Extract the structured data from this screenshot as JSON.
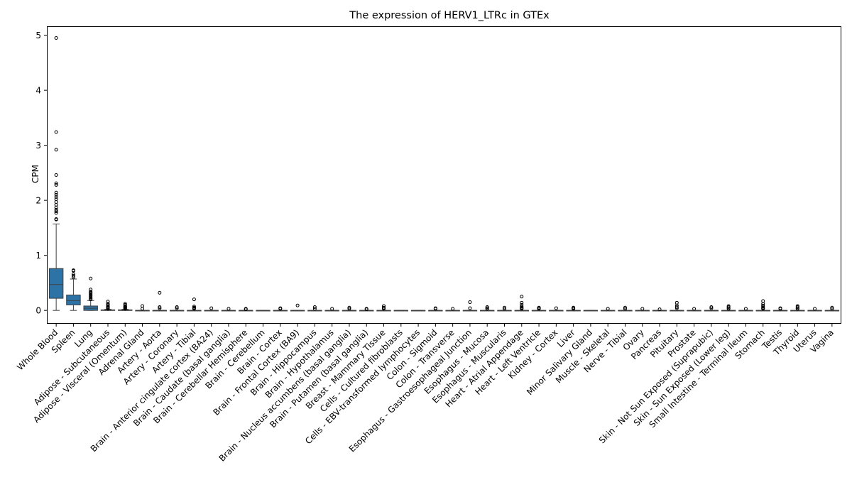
{
  "chart_data": {
    "type": "box",
    "title": "The expression of HERV1_LTRc in GTEx",
    "xlabel": "",
    "ylabel": "CPM",
    "ylim": [
      -0.23,
      5.15
    ],
    "yticks": [
      0,
      1,
      2,
      3,
      4,
      5
    ],
    "grid": false,
    "box_color": "#2e73a6",
    "categories": [
      "Whole Blood",
      "Spleen",
      "Lung",
      "Adipose - Subcutaneous",
      "Adipose - Visceral (Omentum)",
      "Adrenal Gland",
      "Artery - Aorta",
      "Artery - Coronary",
      "Artery - Tibial",
      "Brain - Anterior cingulate cortex (BA24)",
      "Brain - Caudate (basal ganglia)",
      "Brain - Cerebellar Hemisphere",
      "Brain - Cerebellum",
      "Brain - Cortex",
      "Brain - Frontal Cortex (BA9)",
      "Brain - Hippocampus",
      "Brain - Hypothalamus",
      "Brain - Nucleus accumbens (basal ganglia)",
      "Brain - Putamen (basal ganglia)",
      "Breast - Mammary Tissue",
      "Cells - Cultured fibroblasts",
      "Cells - EBV-transformed lymphocytes",
      "Colon - Sigmoid",
      "Colon - Transverse",
      "Esophagus - Gastroesophageal Junction",
      "Esophagus - Mucosa",
      "Esophagus - Muscularis",
      "Heart - Atrial Appendage",
      "Heart - Left Ventricle",
      "Kidney - Cortex",
      "Liver",
      "Minor Salivary Gland",
      "Muscle - Skeletal",
      "Nerve - Tibial",
      "Ovary",
      "Pancreas",
      "Pituitary",
      "Prostate",
      "Skin - Not Sun Exposed (Suprapubic)",
      "Skin - Sun Exposed (Lower leg)",
      "Small Intestine - Terminal Ileum",
      "Stomach",
      "Testis",
      "Thyroid",
      "Uterus",
      "Vagina"
    ],
    "boxes": [
      {
        "q1": 0.22,
        "median": 0.47,
        "q3": 0.76,
        "wlo": 0.0,
        "whi": 1.57,
        "outliers": [
          4.95,
          3.24,
          2.92,
          2.46,
          2.31,
          2.28,
          2.14,
          2.1,
          2.06,
          2.02,
          1.97,
          1.92,
          1.87,
          1.83,
          1.8,
          1.77,
          1.66,
          1.65
        ]
      },
      {
        "q1": 0.1,
        "median": 0.18,
        "q3": 0.28,
        "wlo": 0.0,
        "whi": 0.57,
        "outliers": [
          0.73,
          0.72,
          0.66,
          0.63,
          0.6
        ]
      },
      {
        "q1": 0.0,
        "median": 0.04,
        "q3": 0.08,
        "wlo": 0.0,
        "whi": 0.18,
        "outliers": [
          0.58,
          0.38,
          0.34,
          0.32,
          0.3,
          0.28,
          0.26,
          0.24,
          0.22,
          0.2
        ]
      },
      {
        "q1": 0.0,
        "median": 0.0,
        "q3": 0.01,
        "wlo": 0.0,
        "whi": 0.02,
        "outliers": [
          0.16,
          0.12,
          0.1,
          0.08,
          0.06,
          0.05,
          0.04,
          0.03
        ]
      },
      {
        "q1": 0.0,
        "median": 0.0,
        "q3": 0.01,
        "wlo": 0.0,
        "whi": 0.02,
        "outliers": [
          0.12,
          0.1,
          0.08,
          0.07,
          0.06,
          0.05,
          0.04,
          0.03
        ]
      },
      {
        "q1": 0.0,
        "median": 0.0,
        "q3": 0.0,
        "wlo": 0.0,
        "whi": 0.0,
        "outliers": [
          0.08,
          0.03
        ]
      },
      {
        "q1": 0.0,
        "median": 0.0,
        "q3": 0.0,
        "wlo": 0.0,
        "whi": 0.0,
        "outliers": [
          0.32,
          0.06,
          0.04
        ]
      },
      {
        "q1": 0.0,
        "median": 0.0,
        "q3": 0.0,
        "wlo": 0.0,
        "whi": 0.0,
        "outliers": [
          0.06,
          0.04
        ]
      },
      {
        "q1": 0.0,
        "median": 0.0,
        "q3": 0.0,
        "wlo": 0.0,
        "whi": 0.0,
        "outliers": [
          0.2,
          0.07,
          0.05,
          0.04,
          0.03
        ]
      },
      {
        "q1": 0.0,
        "median": 0.0,
        "q3": 0.0,
        "wlo": 0.0,
        "whi": 0.0,
        "outliers": [
          0.04
        ]
      },
      {
        "q1": 0.0,
        "median": 0.0,
        "q3": 0.0,
        "wlo": 0.0,
        "whi": 0.0,
        "outliers": [
          0.03
        ]
      },
      {
        "q1": 0.0,
        "median": 0.0,
        "q3": 0.0,
        "wlo": 0.0,
        "whi": 0.0,
        "outliers": [
          0.03,
          0.02
        ]
      },
      {
        "q1": 0.0,
        "median": 0.0,
        "q3": 0.0,
        "wlo": 0.0,
        "whi": 0.0,
        "outliers": []
      },
      {
        "q1": 0.0,
        "median": 0.0,
        "q3": 0.0,
        "wlo": 0.0,
        "whi": 0.0,
        "outliers": [
          0.04,
          0.03
        ]
      },
      {
        "q1": 0.0,
        "median": 0.0,
        "q3": 0.0,
        "wlo": 0.0,
        "whi": 0.0,
        "outliers": [
          0.09
        ]
      },
      {
        "q1": 0.0,
        "median": 0.0,
        "q3": 0.0,
        "wlo": 0.0,
        "whi": 0.0,
        "outliers": [
          0.06,
          0.03
        ]
      },
      {
        "q1": 0.0,
        "median": 0.0,
        "q3": 0.0,
        "wlo": 0.0,
        "whi": 0.0,
        "outliers": [
          0.03
        ]
      },
      {
        "q1": 0.0,
        "median": 0.0,
        "q3": 0.0,
        "wlo": 0.0,
        "whi": 0.0,
        "outliers": [
          0.05,
          0.03
        ]
      },
      {
        "q1": 0.0,
        "median": 0.0,
        "q3": 0.0,
        "wlo": 0.0,
        "whi": 0.0,
        "outliers": [
          0.03,
          0.02
        ]
      },
      {
        "q1": 0.0,
        "median": 0.0,
        "q3": 0.0,
        "wlo": 0.0,
        "whi": 0.0,
        "outliers": [
          0.08,
          0.05,
          0.04,
          0.03
        ]
      },
      {
        "q1": 0.0,
        "median": 0.0,
        "q3": 0.0,
        "wlo": 0.0,
        "whi": 0.0,
        "outliers": []
      },
      {
        "q1": 0.0,
        "median": 0.0,
        "q3": 0.0,
        "wlo": 0.0,
        "whi": 0.0,
        "outliers": []
      },
      {
        "q1": 0.0,
        "median": 0.0,
        "q3": 0.0,
        "wlo": 0.0,
        "whi": 0.0,
        "outliers": [
          0.04,
          0.03
        ]
      },
      {
        "q1": 0.0,
        "median": 0.0,
        "q3": 0.0,
        "wlo": 0.0,
        "whi": 0.0,
        "outliers": [
          0.03
        ]
      },
      {
        "q1": 0.0,
        "median": 0.0,
        "q3": 0.0,
        "wlo": 0.0,
        "whi": 0.0,
        "outliers": [
          0.15,
          0.04
        ]
      },
      {
        "q1": 0.0,
        "median": 0.0,
        "q3": 0.0,
        "wlo": 0.0,
        "whi": 0.0,
        "outliers": [
          0.06,
          0.04,
          0.03
        ]
      },
      {
        "q1": 0.0,
        "median": 0.0,
        "q3": 0.0,
        "wlo": 0.0,
        "whi": 0.0,
        "outliers": [
          0.05,
          0.03
        ]
      },
      {
        "q1": 0.0,
        "median": 0.0,
        "q3": 0.0,
        "wlo": 0.0,
        "whi": 0.0,
        "outliers": [
          0.25,
          0.14,
          0.1,
          0.07,
          0.05,
          0.04,
          0.03
        ]
      },
      {
        "q1": 0.0,
        "median": 0.0,
        "q3": 0.0,
        "wlo": 0.0,
        "whi": 0.0,
        "outliers": [
          0.05,
          0.04,
          0.03
        ]
      },
      {
        "q1": 0.0,
        "median": 0.0,
        "q3": 0.0,
        "wlo": 0.0,
        "whi": 0.0,
        "outliers": [
          0.04
        ]
      },
      {
        "q1": 0.0,
        "median": 0.0,
        "q3": 0.0,
        "wlo": 0.0,
        "whi": 0.0,
        "outliers": [
          0.05,
          0.04,
          0.03
        ]
      },
      {
        "q1": 0.0,
        "median": 0.0,
        "q3": 0.0,
        "wlo": 0.0,
        "whi": 0.0,
        "outliers": []
      },
      {
        "q1": 0.0,
        "median": 0.0,
        "q3": 0.0,
        "wlo": 0.0,
        "whi": 0.0,
        "outliers": [
          0.03
        ]
      },
      {
        "q1": 0.0,
        "median": 0.0,
        "q3": 0.0,
        "wlo": 0.0,
        "whi": 0.0,
        "outliers": [
          0.05,
          0.03
        ]
      },
      {
        "q1": 0.0,
        "median": 0.0,
        "q3": 0.0,
        "wlo": 0.0,
        "whi": 0.0,
        "outliers": [
          0.03
        ]
      },
      {
        "q1": 0.0,
        "median": 0.0,
        "q3": 0.0,
        "wlo": 0.0,
        "whi": 0.0,
        "outliers": [
          0.02
        ]
      },
      {
        "q1": 0.0,
        "median": 0.0,
        "q3": 0.0,
        "wlo": 0.0,
        "whi": 0.0,
        "outliers": [
          0.14,
          0.09,
          0.06,
          0.04
        ]
      },
      {
        "q1": 0.0,
        "median": 0.0,
        "q3": 0.0,
        "wlo": 0.0,
        "whi": 0.0,
        "outliers": [
          0.03
        ]
      },
      {
        "q1": 0.0,
        "median": 0.0,
        "q3": 0.0,
        "wlo": 0.0,
        "whi": 0.0,
        "outliers": [
          0.06,
          0.04
        ]
      },
      {
        "q1": 0.0,
        "median": 0.0,
        "q3": 0.0,
        "wlo": 0.0,
        "whi": 0.0,
        "outliers": [
          0.08,
          0.06,
          0.04,
          0.03
        ]
      },
      {
        "q1": 0.0,
        "median": 0.0,
        "q3": 0.0,
        "wlo": 0.0,
        "whi": 0.0,
        "outliers": [
          0.03
        ]
      },
      {
        "q1": 0.0,
        "median": 0.0,
        "q3": 0.0,
        "wlo": 0.0,
        "whi": 0.0,
        "outliers": [
          0.17,
          0.12,
          0.09,
          0.07,
          0.05,
          0.04,
          0.03
        ]
      },
      {
        "q1": 0.0,
        "median": 0.0,
        "q3": 0.0,
        "wlo": 0.0,
        "whi": 0.0,
        "outliers": [
          0.04,
          0.03
        ]
      },
      {
        "q1": 0.0,
        "median": 0.0,
        "q3": 0.0,
        "wlo": 0.0,
        "whi": 0.0,
        "outliers": [
          0.08,
          0.06,
          0.04,
          0.03
        ]
      },
      {
        "q1": 0.0,
        "median": 0.0,
        "q3": 0.0,
        "wlo": 0.0,
        "whi": 0.0,
        "outliers": [
          0.03
        ]
      },
      {
        "q1": 0.0,
        "median": 0.0,
        "q3": 0.0,
        "wlo": 0.0,
        "whi": 0.0,
        "outliers": [
          0.05,
          0.03
        ]
      }
    ]
  }
}
